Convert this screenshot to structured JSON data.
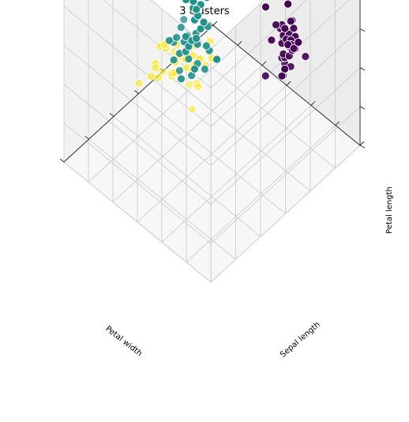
{
  "chart_data": {
    "type": "scatter",
    "projection": "3d",
    "title": "3 clusters",
    "xlabel": "Petal width",
    "ylabel": "Sepal length",
    "zlabel": "Petal length",
    "grid": true,
    "series": [
      {
        "color": "#fde725",
        "points": [
          [
            0.55,
            0.2,
            0.61
          ],
          [
            0.49,
            0.29,
            0.56
          ],
          [
            0.59,
            0.1,
            0.49
          ],
          [
            0.52,
            0.37,
            0.53
          ],
          [
            0.45,
            0.32,
            0.5
          ],
          [
            0.61,
            0.23,
            0.47
          ],
          [
            0.43,
            0.18,
            0.66
          ],
          [
            0.53,
            0.26,
            0.47
          ],
          [
            0.4,
            0.4,
            0.52
          ],
          [
            0.6,
            0.38,
            0.44
          ],
          [
            0.47,
            0.14,
            0.58
          ],
          [
            0.61,
            0.37,
            0.49
          ],
          [
            0.33,
            0.35,
            0.58
          ],
          [
            0.54,
            0.23,
            0.59
          ],
          [
            0.33,
            0.29,
            0.59
          ],
          [
            0.4,
            0.3,
            0.47
          ],
          [
            0.53,
            0.41,
            0.5
          ],
          [
            0.56,
            0.43,
            0.43
          ],
          [
            0.54,
            0.31,
            0.52
          ],
          [
            0.34,
            0.19,
            0.56
          ],
          [
            0.37,
            0.24,
            0.41
          ],
          [
            0.54,
            0.46,
            0.41
          ],
          [
            0.4,
            0.31,
            0.45
          ],
          [
            0.56,
            0.24,
            0.59
          ],
          [
            0.69,
            0.44,
            0.33
          ],
          [
            0.6,
            0.22,
            0.5
          ],
          [
            0.6,
            0.48,
            0.34
          ],
          [
            0.55,
            0.3,
            0.44
          ],
          [
            0.57,
            0.21,
            0.46
          ],
          [
            0.62,
            0.21,
            0.44
          ],
          [
            0.39,
            0.38,
            0.61
          ],
          [
            0.48,
            0.31,
            0.49
          ],
          [
            0.51,
            0.24,
            0.48
          ],
          [
            0.71,
            0.53,
            0.28
          ],
          [
            0.47,
            0.34,
            0.47
          ]
        ]
      },
      {
        "color": "#21918c",
        "points": [
          [
            0.66,
            0.62,
            0.31
          ],
          [
            0.8,
            0.6,
            0.49
          ],
          [
            0.71,
            0.59,
            0.41
          ],
          [
            0.64,
            0.62,
            0.3
          ],
          [
            0.6,
            0.34,
            0.53
          ],
          [
            0.73,
            0.61,
            0.18
          ],
          [
            0.67,
            0.7,
            0.2
          ],
          [
            0.57,
            0.38,
            0.61
          ],
          [
            0.7,
            0.59,
            0.36
          ],
          [
            0.79,
            0.68,
            0.24
          ],
          [
            0.68,
            0.58,
            0.33
          ],
          [
            0.86,
            0.62,
            0.44
          ],
          [
            0.76,
            0.68,
            0.4
          ],
          [
            0.63,
            0.6,
            0.42
          ],
          [
            0.74,
            0.53,
            0.18
          ],
          [
            0.64,
            0.47,
            0.42
          ],
          [
            0.65,
            0.44,
            0.5
          ],
          [
            0.62,
            0.57,
            0.26
          ],
          [
            0.77,
            0.63,
            0.27
          ],
          [
            0.86,
            0.68,
            0.37
          ],
          [
            0.74,
            0.48,
            0.29
          ],
          [
            0.65,
            0.55,
            0.28
          ],
          [
            0.8,
            0.67,
            0.4
          ],
          [
            0.83,
            0.79,
            0.33
          ],
          [
            0.7,
            0.44,
            0.41
          ],
          [
            0.71,
            0.58,
            0.47
          ],
          [
            0.75,
            0.46,
            0.38
          ],
          [
            0.7,
            0.54,
            0.28
          ],
          [
            0.77,
            0.59,
            0.31
          ],
          [
            0.65,
            0.43,
            0.32
          ],
          [
            0.69,
            0.45,
            0.43
          ],
          [
            0.71,
            0.52,
            0.36
          ],
          [
            0.69,
            0.47,
            0.35
          ],
          [
            0.74,
            0.62,
            0.38
          ],
          [
            0.76,
            0.59,
            0.32
          ],
          [
            0.73,
            0.55,
            0.29
          ],
          [
            0.67,
            0.53,
            0.23
          ],
          [
            0.79,
            0.73,
            0.28
          ],
          [
            0.8,
            0.7,
            0.32
          ],
          [
            0.72,
            0.64,
            0.34
          ],
          [
            0.83,
            0.72,
            0.32
          ],
          [
            0.74,
            0.58,
            0.29
          ]
        ]
      },
      {
        "color": "#440154",
        "points": [
          [
            0.38,
            0.85,
            0.41
          ],
          [
            0.48,
            0.84,
            0.44
          ],
          [
            0.43,
            0.83,
            0.33
          ],
          [
            0.38,
            0.85,
            0.19
          ],
          [
            0.36,
            0.84,
            0.37
          ],
          [
            0.33,
            0.87,
            0.37
          ],
          [
            0.37,
            0.85,
            0.29
          ],
          [
            0.38,
            0.91,
            0.29
          ],
          [
            0.41,
            0.84,
            0.4
          ],
          [
            0.35,
            0.87,
            0.28
          ],
          [
            0.34,
            0.82,
            0.23
          ],
          [
            0.37,
            0.89,
            0.35
          ],
          [
            0.37,
            0.83,
            0.41
          ],
          [
            0.4,
            0.89,
            0.36
          ],
          [
            0.43,
            0.79,
            0.2
          ],
          [
            0.32,
            0.88,
            0.32
          ],
          [
            0.28,
            0.91,
            0.29
          ],
          [
            0.38,
            0.91,
            0.39
          ],
          [
            0.39,
            0.9,
            0.29
          ],
          [
            0.31,
            0.8,
            0.31
          ],
          [
            0.3,
            0.84,
            0.39
          ],
          [
            0.36,
            0.86,
            0.35
          ],
          [
            0.38,
            0.85,
            0.33
          ],
          [
            0.32,
            0.85,
            0.34
          ],
          [
            0.34,
            0.83,
            0.25
          ],
          [
            0.37,
            0.91,
            0.27
          ],
          [
            0.35,
            0.89,
            0.42
          ],
          [
            0.31,
            0.82,
            0.4
          ],
          [
            0.43,
            0.94,
            0.42
          ],
          [
            0.36,
            0.85,
            0.23
          ],
          [
            0.38,
            0.96,
            0.27
          ],
          [
            0.35,
            0.84,
            0.29
          ],
          [
            0.33,
            0.86,
            0.25
          ],
          [
            0.36,
            0.86,
            0.39
          ],
          [
            0.37,
            0.9,
            0.32
          ],
          [
            0.36,
            0.85,
            0.38
          ],
          [
            0.33,
            0.86,
            0.36
          ],
          [
            0.34,
            0.86,
            0.33
          ],
          [
            0.35,
            0.91,
            0.34
          ],
          [
            0.37,
            0.85,
            0.37
          ],
          [
            0.35,
            0.82,
            0.3
          ],
          [
            0.36,
            0.91,
            0.37
          ],
          [
            0.34,
            0.87,
            0.32
          ],
          [
            0.36,
            0.9,
            0.3
          ],
          [
            0.39,
            0.94,
            0.25
          ],
          [
            0.38,
            0.88,
            0.33
          ]
        ]
      }
    ]
  }
}
